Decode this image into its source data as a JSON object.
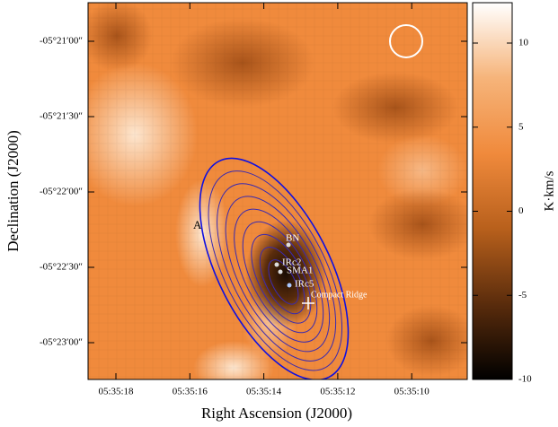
{
  "chart_data": {
    "type": "image",
    "xlabel": "Right Ascension (J2000)",
    "ylabel": "Declination (J2000)",
    "xticks": [
      "05:35:18",
      "05:35:16",
      "05:35:14",
      "05:35:12",
      "05:35:10"
    ],
    "yticks": [
      "-05°21′00″",
      "-05°21′30″",
      "-05°22′00″",
      "-05°22′30″",
      "-05°23′00″"
    ],
    "colorbar": {
      "label": "K·km/s",
      "lim": [
        -10,
        12.4
      ],
      "ticks": [
        -10,
        -5,
        0,
        5,
        10
      ],
      "colors": [
        "#000000",
        "#5a2c0c",
        "#b8601c",
        "#f08a3c",
        "#f6b47a",
        "#ffffff"
      ]
    },
    "annotations": [
      "A",
      "BN",
      "IRc2",
      "SMA1",
      "IRc5",
      "Compact Ridge"
    ]
  }
}
